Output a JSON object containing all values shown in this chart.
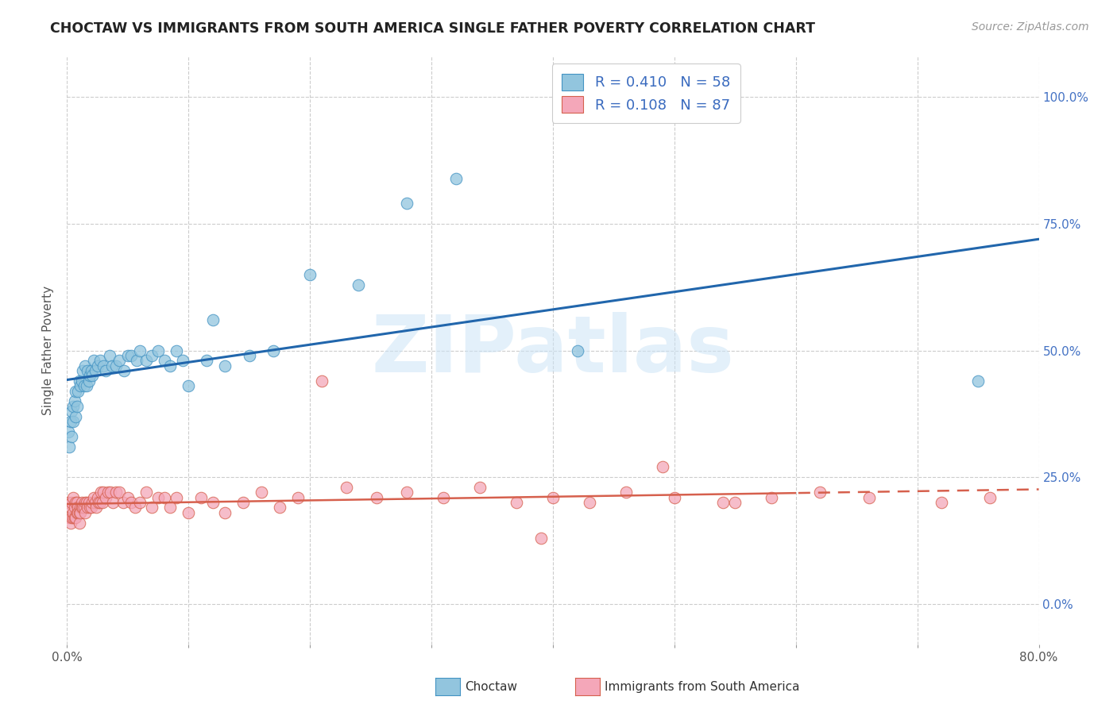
{
  "title": "CHOCTAW VS IMMIGRANTS FROM SOUTH AMERICA SINGLE FATHER POVERTY CORRELATION CHART",
  "source": "Source: ZipAtlas.com",
  "ylabel": "Single Father Poverty",
  "x_min": 0.0,
  "x_max": 0.8,
  "y_min": -0.08,
  "y_max": 1.08,
  "x_tick_positions": [
    0.0,
    0.1,
    0.2,
    0.3,
    0.4,
    0.5,
    0.6,
    0.7,
    0.8
  ],
  "x_tick_labels": [
    "0.0%",
    "",
    "",
    "",
    "",
    "",
    "",
    "",
    "80.0%"
  ],
  "y_tick_positions": [
    0.0,
    0.25,
    0.5,
    0.75,
    1.0
  ],
  "y_tick_labels_right": [
    "0.0%",
    "25.0%",
    "50.0%",
    "75.0%",
    "100.0%"
  ],
  "choctaw_color": "#92c5de",
  "choctaw_edge": "#4393c3",
  "immigrant_color": "#f4a7b9",
  "immigrant_edge": "#d6604d",
  "regression_blue": "#2166ac",
  "regression_pink": "#d6604d",
  "R_choctaw": 0.41,
  "N_choctaw": 58,
  "R_immigrant": 0.108,
  "N_immigrant": 87,
  "watermark": "ZIPatlas",
  "background_color": "#ffffff",
  "choctaw_x": [
    0.001,
    0.002,
    0.003,
    0.004,
    0.004,
    0.005,
    0.005,
    0.006,
    0.007,
    0.007,
    0.008,
    0.009,
    0.01,
    0.011,
    0.012,
    0.013,
    0.014,
    0.015,
    0.016,
    0.017,
    0.018,
    0.019,
    0.02,
    0.021,
    0.022,
    0.023,
    0.025,
    0.027,
    0.03,
    0.032,
    0.035,
    0.037,
    0.04,
    0.043,
    0.047,
    0.05,
    0.053,
    0.057,
    0.06,
    0.065,
    0.07,
    0.075,
    0.08,
    0.09,
    0.1,
    0.115,
    0.13,
    0.15,
    0.17,
    0.2,
    0.24,
    0.28,
    0.32,
    0.12,
    0.095,
    0.085,
    0.75,
    0.42
  ],
  "choctaw_y": [
    0.34,
    0.31,
    0.36,
    0.38,
    0.33,
    0.36,
    0.39,
    0.4,
    0.37,
    0.42,
    0.39,
    0.42,
    0.44,
    0.43,
    0.44,
    0.46,
    0.43,
    0.47,
    0.43,
    0.46,
    0.44,
    0.45,
    0.46,
    0.45,
    0.48,
    0.46,
    0.47,
    0.48,
    0.47,
    0.46,
    0.49,
    0.47,
    0.47,
    0.48,
    0.46,
    0.49,
    0.49,
    0.48,
    0.5,
    0.48,
    0.49,
    0.5,
    0.48,
    0.5,
    0.43,
    0.48,
    0.47,
    0.49,
    0.5,
    0.65,
    0.63,
    0.79,
    0.84,
    0.56,
    0.48,
    0.47,
    0.44,
    0.5
  ],
  "immigrant_x": [
    0.001,
    0.002,
    0.003,
    0.003,
    0.004,
    0.004,
    0.005,
    0.005,
    0.005,
    0.006,
    0.006,
    0.007,
    0.007,
    0.008,
    0.008,
    0.009,
    0.009,
    0.01,
    0.01,
    0.011,
    0.011,
    0.012,
    0.012,
    0.013,
    0.014,
    0.015,
    0.015,
    0.016,
    0.017,
    0.018,
    0.019,
    0.02,
    0.021,
    0.022,
    0.023,
    0.024,
    0.025,
    0.026,
    0.027,
    0.028,
    0.029,
    0.03,
    0.032,
    0.034,
    0.036,
    0.038,
    0.04,
    0.043,
    0.046,
    0.05,
    0.053,
    0.056,
    0.06,
    0.065,
    0.07,
    0.075,
    0.08,
    0.085,
    0.09,
    0.1,
    0.11,
    0.12,
    0.13,
    0.145,
    0.16,
    0.175,
    0.19,
    0.21,
    0.23,
    0.255,
    0.28,
    0.31,
    0.34,
    0.37,
    0.4,
    0.43,
    0.46,
    0.5,
    0.54,
    0.58,
    0.62,
    0.66,
    0.72,
    0.76,
    0.55,
    0.49,
    0.39
  ],
  "immigrant_y": [
    0.2,
    0.17,
    0.16,
    0.19,
    0.17,
    0.2,
    0.17,
    0.18,
    0.21,
    0.17,
    0.19,
    0.17,
    0.2,
    0.18,
    0.2,
    0.19,
    0.18,
    0.18,
    0.16,
    0.19,
    0.18,
    0.19,
    0.2,
    0.19,
    0.19,
    0.18,
    0.2,
    0.2,
    0.19,
    0.2,
    0.19,
    0.19,
    0.2,
    0.21,
    0.2,
    0.19,
    0.21,
    0.2,
    0.2,
    0.22,
    0.2,
    0.22,
    0.21,
    0.22,
    0.22,
    0.2,
    0.22,
    0.22,
    0.2,
    0.21,
    0.2,
    0.19,
    0.2,
    0.22,
    0.19,
    0.21,
    0.21,
    0.19,
    0.21,
    0.18,
    0.21,
    0.2,
    0.18,
    0.2,
    0.22,
    0.19,
    0.21,
    0.44,
    0.23,
    0.21,
    0.22,
    0.21,
    0.23,
    0.2,
    0.21,
    0.2,
    0.22,
    0.21,
    0.2,
    0.21,
    0.22,
    0.21,
    0.2,
    0.21,
    0.2,
    0.27,
    0.13
  ],
  "regression_dashed_start": 0.6
}
